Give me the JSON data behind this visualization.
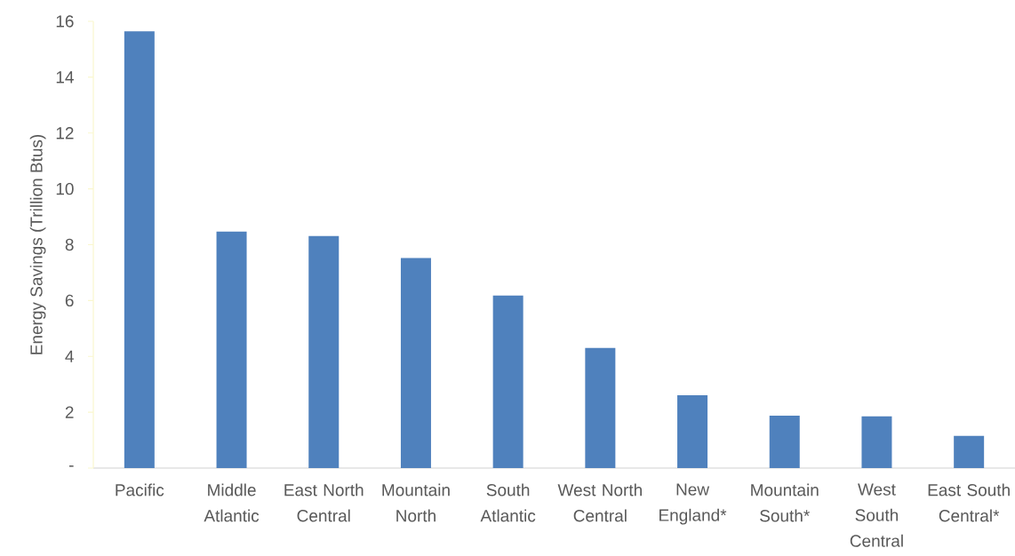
{
  "chart_data": {
    "type": "bar",
    "ylabel": "Energy Savings (Trillion Btus)",
    "categories": [
      "Pacific",
      "Middle Atlantic",
      "East North Central",
      "Mountain North",
      "South Atlantic",
      "West North Central",
      "New England*",
      "Mountain South*",
      "West South Central",
      "East South Central*"
    ],
    "values": [
      15.64,
      8.47,
      8.31,
      7.52,
      6.18,
      4.3,
      2.61,
      1.88,
      1.85,
      1.15
    ],
    "color": "#4f81bd",
    "ylim": [
      0,
      16
    ],
    "yticks": [
      {
        "value": 0,
        "label": "-"
      },
      2,
      4,
      6,
      8,
      10,
      12,
      14,
      16
    ],
    "grid": false
  }
}
